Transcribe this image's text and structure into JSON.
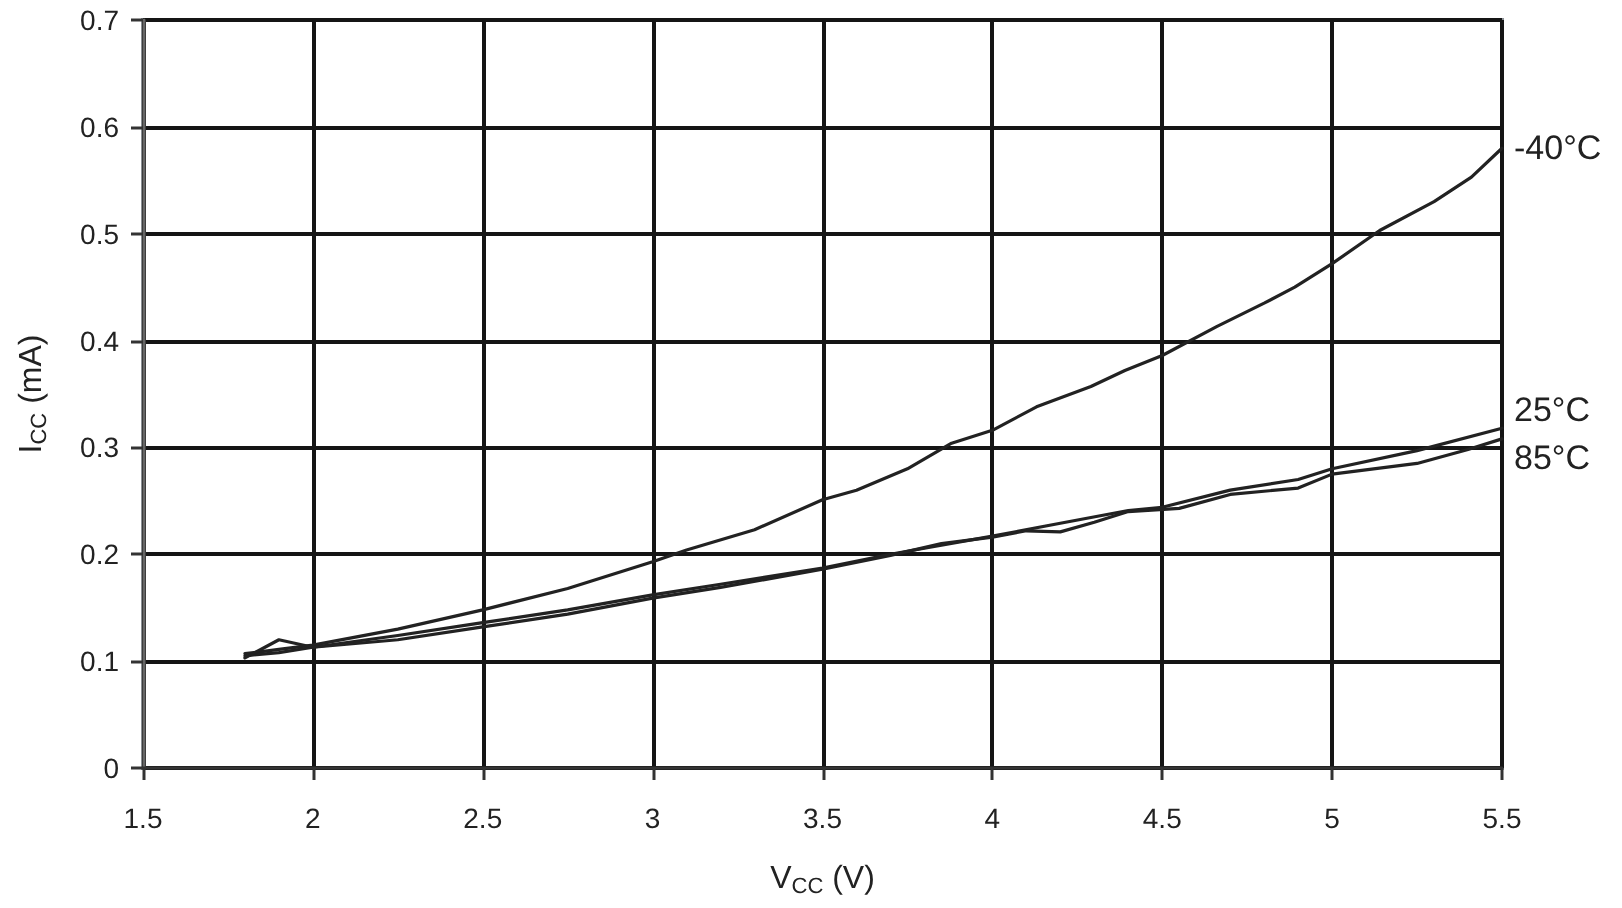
{
  "chart_data": {
    "type": "line",
    "xlabel": "V$_{CC}$ (V)",
    "ylabel": "I$_{CC}$ (mA)",
    "xlim": [
      1.5,
      5.5
    ],
    "xticks": [
      1.5,
      2,
      2.5,
      3,
      3.5,
      4,
      4.5,
      5,
      5.5
    ],
    "ylim": [
      0,
      0.7
    ],
    "yticks": [
      0,
      0.1,
      0.2,
      0.3,
      0.4,
      0.5,
      0.6,
      0.7
    ],
    "grid": true,
    "marker": "none",
    "line_style": "solid",
    "series": [
      {
        "name": "-40°C",
        "color": "#222222",
        "x": [
          1.8,
          1.9,
          2.0,
          2.25,
          2.5,
          2.75,
          3.0,
          3.1,
          3.3,
          3.5,
          3.6,
          3.75,
          3.88,
          4.0,
          4.13,
          4.29,
          4.39,
          4.5,
          4.66,
          4.8,
          4.89,
          5.0,
          5.14,
          5.3,
          5.41,
          5.5
        ],
        "values": [
          0.107,
          0.111,
          0.115,
          0.13,
          0.148,
          0.168,
          0.193,
          0.204,
          0.223,
          0.251,
          0.26,
          0.28,
          0.304,
          0.316,
          0.338,
          0.357,
          0.372,
          0.386,
          0.413,
          0.435,
          0.45,
          0.472,
          0.503,
          0.53,
          0.553,
          0.58
        ]
      },
      {
        "name": "25°C",
        "color": "#222222",
        "x": [
          1.8,
          1.9,
          2.0,
          2.25,
          2.5,
          2.75,
          3.0,
          3.2,
          3.5,
          3.7,
          4.0,
          4.2,
          4.4,
          4.5,
          4.7,
          4.9,
          5.0,
          5.25,
          5.5
        ],
        "values": [
          0.105,
          0.108,
          0.113,
          0.124,
          0.136,
          0.148,
          0.162,
          0.172,
          0.187,
          0.2,
          0.217,
          0.229,
          0.241,
          0.244,
          0.26,
          0.27,
          0.28,
          0.297,
          0.318
        ]
      },
      {
        "name": "85°C",
        "color": "#222222",
        "x": [
          1.8,
          1.9,
          2.0,
          2.25,
          2.5,
          2.75,
          3.0,
          3.2,
          3.5,
          3.7,
          3.85,
          4.0,
          4.1,
          4.2,
          4.3,
          4.4,
          4.55,
          4.7,
          4.9,
          5.0,
          5.25,
          5.4,
          5.5
        ],
        "values": [
          0.103,
          0.12,
          0.113,
          0.12,
          0.132,
          0.144,
          0.159,
          0.169,
          0.186,
          0.199,
          0.21,
          0.216,
          0.222,
          0.221,
          0.23,
          0.24,
          0.243,
          0.256,
          0.262,
          0.275,
          0.285,
          0.298,
          0.308
        ]
      }
    ]
  }
}
